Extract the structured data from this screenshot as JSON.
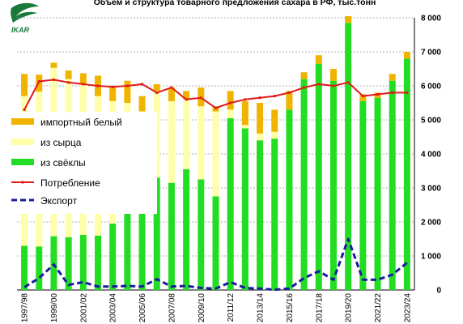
{
  "logo": {
    "name": "IKAR",
    "color": "#1a7a3a"
  },
  "chart_data": {
    "type": "bar",
    "title": "Объем и структура товарного предложения сахара в РФ, тыс.тонн",
    "xlabel": "",
    "ylabel": "",
    "ylim": [
      0,
      8000
    ],
    "yticks": [
      "0",
      "1 000",
      "2 000",
      "3 000",
      "4 000",
      "5 000",
      "6 000",
      "7 000",
      "8 000"
    ],
    "grid": true,
    "legend_position": "left",
    "categories": [
      "1997/98",
      "1998/99",
      "1999/00",
      "2000/01",
      "2001/02",
      "2002/03",
      "2003/04",
      "2004/05",
      "2005/06",
      "2006/07",
      "2007/08",
      "2008/09",
      "2009/10",
      "2010/11",
      "2011/12",
      "2012/13",
      "2013/14",
      "2014/15",
      "2015/16",
      "2016/17",
      "2017/18",
      "2018/19",
      "2019/20",
      "2020/21",
      "2021/22",
      "2022/23",
      "2023/24"
    ],
    "x_tick_labels": [
      "1997/98",
      "1999/00",
      "2001/02",
      "2003/04",
      "2005/06",
      "2007/08",
      "2009/10",
      "2011/12",
      "2013/14",
      "2015/16",
      "2017/18",
      "2019/20",
      "2021/22",
      "2023/24"
    ],
    "series": [
      {
        "name": "из свёклы",
        "kind": "bar",
        "color": "#22dd22",
        "values": [
          1300,
          1280,
          1580,
          1550,
          1620,
          1600,
          1950,
          2250,
          2500,
          3300,
          3150,
          3550,
          3250,
          2750,
          5050,
          4750,
          4400,
          4450,
          5300,
          6200,
          6650,
          6150,
          7850,
          5550,
          5650,
          6150,
          6800
        ]
      },
      {
        "name": "из сырца",
        "kind": "bar",
        "color": "#ffffaa",
        "values": [
          4400,
          4550,
          4950,
          4650,
          4450,
          4100,
          3600,
          3250,
          2750,
          2550,
          2400,
          2050,
          2150,
          2500,
          250,
          100,
          200,
          200,
          0,
          0,
          0,
          0,
          0,
          0,
          0,
          0,
          0
        ]
      },
      {
        "name": "импортный белый",
        "kind": "bar",
        "color": "#f0b400",
        "values": [
          650,
          500,
          150,
          250,
          300,
          600,
          450,
          650,
          450,
          200,
          400,
          250,
          550,
          150,
          550,
          700,
          900,
          650,
          550,
          200,
          250,
          350,
          200,
          200,
          150,
          200,
          200
        ]
      },
      {
        "name": "Потребление",
        "kind": "line",
        "color": "#e01a1a",
        "values": [
          5300,
          6130,
          6180,
          6100,
          6050,
          6000,
          5970,
          6000,
          6050,
          5800,
          5950,
          5600,
          5650,
          5350,
          5500,
          5600,
          5650,
          5700,
          5800,
          5950,
          6050,
          6000,
          6100,
          5700,
          5750,
          5800,
          5800
        ]
      },
      {
        "name": "Экспорт",
        "kind": "line",
        "color": "#1a1aa0",
        "values": [
          80,
          350,
          750,
          150,
          230,
          100,
          100,
          120,
          100,
          320,
          100,
          120,
          60,
          40,
          230,
          60,
          40,
          10,
          40,
          350,
          550,
          300,
          1500,
          300,
          300,
          450,
          800
        ]
      }
    ]
  }
}
